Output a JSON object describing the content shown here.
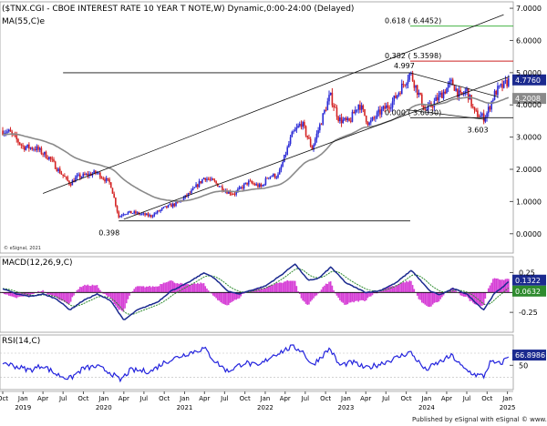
{
  "header": {
    "title": "($TNX.CGI - CBOE INTEREST RATE 10 YEAR T NOTE,W) Dynamic,0:00-24:00 (Delayed)",
    "ma_label": "MA(55,C)e",
    "copyright": "© eSignal, 2021",
    "macd_label": "MACD(12,26,9,C)",
    "rsi_label": "RSI(14,C)",
    "footer": "Published by eSignal with eSignal  © www.esignal.com"
  },
  "colors": {
    "up_candle": "#2b2bd6",
    "down_candle": "#d42424",
    "ma": "#8a8a8a",
    "channel": "#111111",
    "fib_618": "#28a828",
    "fib_382": "#cc2020",
    "macd_line": "#1b2a8f",
    "signal_line": "#2e8b2e",
    "histogram": "#d63fd6",
    "rsi": "#2222dd"
  },
  "chart_data": [
    {
      "type": "candlestick",
      "panel": "price",
      "y_axis_ticks": [
        "7.0000",
        "6.0000",
        "5.0000",
        "4.0000",
        "3.0000",
        "2.0000",
        "1.0000",
        "0.0000"
      ],
      "ylim": [
        -0.6,
        7.2
      ],
      "x_axis_ticks": [
        "Oct",
        "Jan",
        "Apr",
        "Jul",
        "Oct",
        "Jan",
        "Apr",
        "Jul",
        "Oct",
        "Jan",
        "Apr",
        "Jul",
        "Oct",
        "Jan",
        "Apr",
        "Jul",
        "Oct",
        "Jan",
        "Apr",
        "Jul",
        "Oct",
        "Jan",
        "Apr",
        "Jul",
        "Oct",
        "Jan"
      ],
      "x_axis_years": [
        "2019",
        "2020",
        "2021",
        "2022",
        "2023",
        "2024",
        "2025"
      ],
      "x_start": "2018-10-01",
      "x_end": "2025-01-15",
      "price_anchors": [
        [
          "2018-10-01",
          3.2
        ],
        [
          "2018-11-01",
          3.15
        ],
        [
          "2019-01-01",
          2.7
        ],
        [
          "2019-03-01",
          2.65
        ],
        [
          "2019-05-01",
          2.35
        ],
        [
          "2019-06-01",
          2.05
        ],
        [
          "2019-08-01",
          1.55
        ],
        [
          "2019-09-01",
          1.75
        ],
        [
          "2019-12-01",
          1.9
        ],
        [
          "2020-02-01",
          1.55
        ],
        [
          "2020-03-09",
          0.52
        ],
        [
          "2020-04-01",
          0.65
        ],
        [
          "2020-05-15",
          0.65
        ],
        [
          "2020-08-01",
          0.55
        ],
        [
          "2020-10-01",
          0.8
        ],
        [
          "2020-12-01",
          0.95
        ],
        [
          "2021-02-01",
          1.3
        ],
        [
          "2021-03-31",
          1.75
        ],
        [
          "2021-05-15",
          1.6
        ],
        [
          "2021-07-15",
          1.3
        ],
        [
          "2021-08-15",
          1.25
        ],
        [
          "2021-10-15",
          1.6
        ],
        [
          "2021-12-15",
          1.45
        ],
        [
          "2022-01-15",
          1.8
        ],
        [
          "2022-03-01",
          1.8
        ],
        [
          "2022-05-01",
          3.05
        ],
        [
          "2022-06-14",
          3.45
        ],
        [
          "2022-08-01",
          2.65
        ],
        [
          "2022-10-21",
          4.3
        ],
        [
          "2022-12-01",
          3.55
        ],
        [
          "2023-01-15",
          3.45
        ],
        [
          "2023-03-01",
          4.05
        ],
        [
          "2023-04-15",
          3.4
        ],
        [
          "2023-06-01",
          3.75
        ],
        [
          "2023-08-01",
          4.1
        ],
        [
          "2023-10-19",
          4.997
        ],
        [
          "2023-12-27",
          3.8
        ],
        [
          "2024-02-01",
          4.05
        ],
        [
          "2024-04-25",
          4.7
        ],
        [
          "2024-06-01",
          4.25
        ],
        [
          "2024-07-01",
          4.45
        ],
        [
          "2024-08-05",
          3.75
        ],
        [
          "2024-09-16",
          3.603
        ],
        [
          "2024-10-01",
          3.75
        ],
        [
          "2024-11-01",
          4.3
        ],
        [
          "2024-11-15",
          4.45
        ],
        [
          "2024-12-15",
          4.6
        ],
        [
          "2025-01-10",
          4.776
        ]
      ],
      "current_price": "4.7760",
      "ma_value": "4.2008",
      "annotations": [
        {
          "label": "4.997",
          "date": "2023-10-19",
          "value": 4.997
        },
        {
          "label": "3.603",
          "date": "2024-09-16",
          "value": 3.603
        },
        {
          "label": "0.398",
          "date": "2020-03-09",
          "value": 0.398
        }
      ],
      "fib_levels": [
        {
          "label": "0.618 ( 6.4452)",
          "value": 6.4452,
          "from": "2023-10-19",
          "color_key": "fib_618"
        },
        {
          "label": "0.382 ( 5.3598)",
          "value": 5.3598,
          "from": "2023-10-19",
          "color_key": "fib_382"
        },
        {
          "label": "0.000 ( 3.6030)",
          "value": 3.603,
          "from": "2023-10-19",
          "color_key": "channel"
        }
      ],
      "horizontal_lines": [
        {
          "value": 4.997,
          "from": "2019-07-01",
          "to": "2023-10-19"
        },
        {
          "value": 0.398,
          "from": "2020-03-09",
          "to": "2023-10-19"
        }
      ],
      "trend_lines": [
        {
          "from": [
            "2019-04-01",
            1.25
          ],
          "to": [
            "2024-12-15",
            6.8
          ]
        },
        {
          "from": [
            "2020-04-01",
            0.45
          ],
          "to": [
            "2025-01-10",
            4.88
          ]
        },
        {
          "from": [
            "2023-10-19",
            4.997
          ],
          "to": [
            "2024-11-20",
            4.25
          ]
        },
        {
          "from": [
            "2023-10-01",
            3.85
          ],
          "to": [
            "2024-09-20",
            3.55
          ]
        }
      ]
    },
    {
      "type": "line",
      "panel": "macd",
      "y_axis_ticks": [
        "0.25",
        "-0.25"
      ],
      "ylim": [
        -0.5,
        0.45
      ],
      "macd_value": "0.1322",
      "signal_value": "0.0632",
      "macd_anchors": [
        [
          "2018-10-01",
          0.05
        ],
        [
          "2018-12-01",
          -0.02
        ],
        [
          "2019-02-01",
          -0.05
        ],
        [
          "2019-04-01",
          -0.02
        ],
        [
          "2019-06-01",
          -0.08
        ],
        [
          "2019-08-01",
          -0.22
        ],
        [
          "2019-10-01",
          -0.1
        ],
        [
          "2019-12-01",
          -0.02
        ],
        [
          "2020-02-01",
          -0.1
        ],
        [
          "2020-04-01",
          -0.35
        ],
        [
          "2020-06-01",
          -0.22
        ],
        [
          "2020-09-01",
          -0.12
        ],
        [
          "2020-11-01",
          0.02
        ],
        [
          "2021-01-15",
          0.12
        ],
        [
          "2021-03-31",
          0.25
        ],
        [
          "2021-05-15",
          0.18
        ],
        [
          "2021-07-15",
          0.02
        ],
        [
          "2021-09-01",
          -0.02
        ],
        [
          "2021-11-01",
          0.03
        ],
        [
          "2022-01-01",
          0.08
        ],
        [
          "2022-03-15",
          0.22
        ],
        [
          "2022-05-15",
          0.36
        ],
        [
          "2022-07-15",
          0.15
        ],
        [
          "2022-09-01",
          0.18
        ],
        [
          "2022-10-25",
          0.32
        ],
        [
          "2023-01-01",
          0.12
        ],
        [
          "2023-04-01",
          0.0
        ],
        [
          "2023-06-01",
          0.02
        ],
        [
          "2023-08-15",
          0.12
        ],
        [
          "2023-10-25",
          0.28
        ],
        [
          "2024-01-15",
          0.02
        ],
        [
          "2024-03-01",
          -0.03
        ],
        [
          "2024-05-01",
          0.05
        ],
        [
          "2024-07-01",
          -0.02
        ],
        [
          "2024-09-15",
          -0.22
        ],
        [
          "2024-11-01",
          -0.02
        ],
        [
          "2024-12-15",
          0.08
        ],
        [
          "2025-01-10",
          0.14
        ]
      ]
    },
    {
      "type": "line",
      "panel": "rsi",
      "y_axis_ticks": [
        "50"
      ],
      "ylim": [
        10,
        100
      ],
      "rsi_value": "66.8986",
      "rsi_anchors": [
        [
          "2018-10-01",
          55
        ],
        [
          "2018-12-01",
          48
        ],
        [
          "2019-02-01",
          42
        ],
        [
          "2019-04-01",
          50
        ],
        [
          "2019-06-01",
          35
        ],
        [
          "2019-08-01",
          28
        ],
        [
          "2019-10-01",
          45
        ],
        [
          "2019-12-01",
          48
        ],
        [
          "2020-02-01",
          38
        ],
        [
          "2020-03-15",
          25
        ],
        [
          "2020-05-01",
          42
        ],
        [
          "2020-08-01",
          40
        ],
        [
          "2020-10-01",
          55
        ],
        [
          "2021-01-01",
          68
        ],
        [
          "2021-03-31",
          78
        ],
        [
          "2021-05-15",
          58
        ],
        [
          "2021-07-15",
          40
        ],
        [
          "2021-10-01",
          55
        ],
        [
          "2021-12-01",
          48
        ],
        [
          "2022-02-01",
          66
        ],
        [
          "2022-05-01",
          80
        ],
        [
          "2022-06-15",
          75
        ],
        [
          "2022-08-01",
          50
        ],
        [
          "2022-10-21",
          78
        ],
        [
          "2022-12-01",
          50
        ],
        [
          "2023-02-01",
          55
        ],
        [
          "2023-04-01",
          45
        ],
        [
          "2023-06-01",
          52
        ],
        [
          "2023-08-15",
          62
        ],
        [
          "2023-10-19",
          72
        ],
        [
          "2023-12-27",
          42
        ],
        [
          "2024-02-01",
          50
        ],
        [
          "2024-04-25",
          66
        ],
        [
          "2024-06-15",
          45
        ],
        [
          "2024-08-05",
          35
        ],
        [
          "2024-09-16",
          32
        ],
        [
          "2024-10-15",
          55
        ],
        [
          "2024-12-01",
          52
        ],
        [
          "2025-01-10",
          67
        ]
      ]
    }
  ]
}
